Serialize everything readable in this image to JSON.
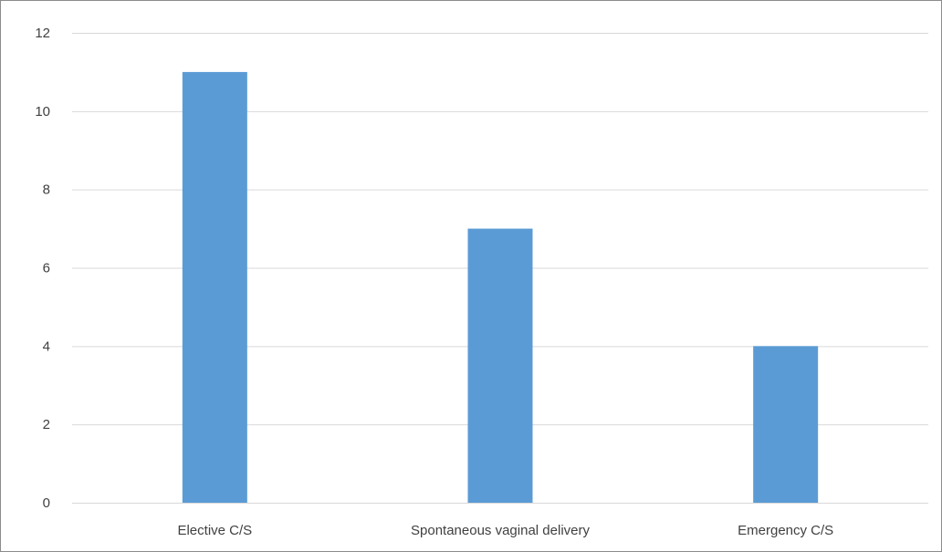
{
  "chart_data": {
    "type": "bar",
    "categories": [
      "Elective C/S",
      "Spontaneous vaginal delivery",
      "Emergency C/S"
    ],
    "values": [
      11,
      7,
      4
    ],
    "ylim": [
      0,
      12
    ],
    "yticks": [
      0,
      2,
      4,
      6,
      8,
      10,
      12
    ],
    "grid": true,
    "bar_color": "#5b9bd5",
    "grid_color": "#d9d9d9",
    "text_color": "#404040"
  }
}
